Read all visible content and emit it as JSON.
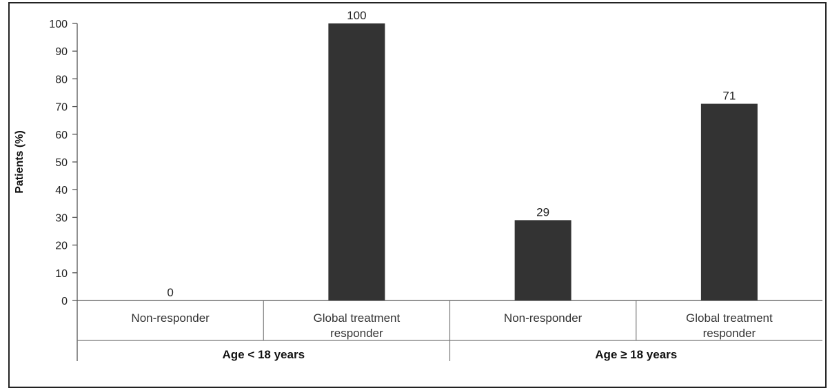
{
  "chart_data": {
    "type": "bar",
    "title": "",
    "ylabel": "Patients (%)",
    "xlabel": "",
    "ylim": [
      0,
      100
    ],
    "yticks": [
      0,
      10,
      20,
      30,
      40,
      50,
      60,
      70,
      80,
      90,
      100
    ],
    "groups": [
      {
        "label": "Age < 18 years",
        "categories": [
          {
            "label_lines": [
              "Non-responder"
            ],
            "value": 0
          },
          {
            "label_lines": [
              "Global treatment",
              "responder"
            ],
            "value": 100
          }
        ]
      },
      {
        "label": "Age ≥ 18 years",
        "categories": [
          {
            "label_lines": [
              "Non-responder"
            ],
            "value": 29
          },
          {
            "label_lines": [
              "Global treatment",
              "responder"
            ],
            "value": 71
          }
        ]
      }
    ],
    "bar_color": "#333333",
    "grid": false,
    "legend": "none"
  }
}
